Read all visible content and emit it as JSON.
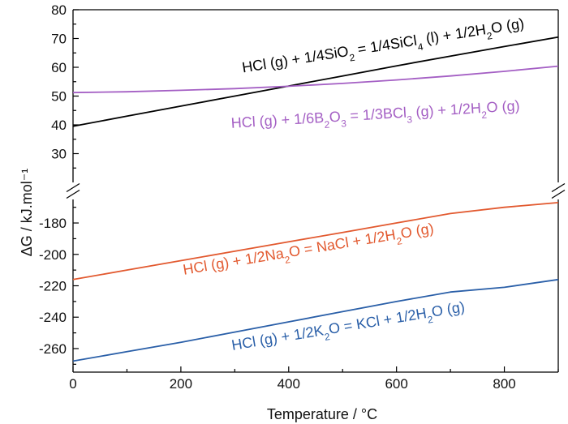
{
  "chart_data": {
    "type": "line",
    "xlabel": "Temperature / °C",
    "ylabel": "ΔG / kJ.mol⁻¹",
    "xlim": [
      0,
      900
    ],
    "x_ticks": [
      "0",
      "200",
      "400",
      "600",
      "800"
    ],
    "axis_break": true,
    "upper_panel": {
      "ylim": [
        20,
        80
      ],
      "y_ticks": [
        "30",
        "40",
        "50",
        "60",
        "70",
        "80"
      ]
    },
    "lower_panel": {
      "ylim": [
        -275,
        -165
      ],
      "y_ticks": [
        "-180",
        "-200",
        "-220",
        "-240",
        "-260"
      ]
    },
    "grid": false,
    "series": [
      {
        "name": "HCl (g) + 1/4SiO2 = 1/4SiCl4 (l) + 1/2H2O (g)",
        "color": "#000000",
        "panel": "upper",
        "x": [
          0,
          100,
          200,
          300,
          400,
          500,
          600,
          700,
          800,
          900
        ],
        "y": [
          39.5,
          43.0,
          46.5,
          50.0,
          53.5,
          57.0,
          60.5,
          63.9,
          67.2,
          70.5
        ]
      },
      {
        "name": "HCl (g) + 1/6B2O3 = 1/3BCl3 (g) + 1/2H2O (g)",
        "color": "#a45fc4",
        "panel": "upper",
        "x": [
          0,
          100,
          200,
          300,
          400,
          500,
          600,
          700,
          800,
          900
        ],
        "y": [
          51.2,
          51.5,
          52.0,
          52.6,
          53.4,
          54.4,
          55.6,
          57.0,
          58.6,
          60.4
        ]
      },
      {
        "name": "HCl (g) + 1/2Na2O = NaCl + 1/2H2O (g)",
        "color": "#e2592f",
        "panel": "lower",
        "x": [
          0,
          100,
          200,
          300,
          400,
          500,
          600,
          700,
          800,
          900
        ],
        "y": [
          -216,
          -210,
          -204,
          -198,
          -192,
          -186,
          -180,
          -174,
          -170,
          -167
        ]
      },
      {
        "name": "HCl (g) + 1/2K2O = KCl + 1/2H2O (g)",
        "color": "#2a5fa8",
        "panel": "lower",
        "x": [
          0,
          100,
          200,
          300,
          400,
          500,
          600,
          700,
          800,
          900
        ],
        "y": [
          -268,
          -262,
          -256,
          -249.5,
          -243,
          -236.5,
          -230,
          -224,
          -221,
          -216
        ]
      }
    ]
  }
}
